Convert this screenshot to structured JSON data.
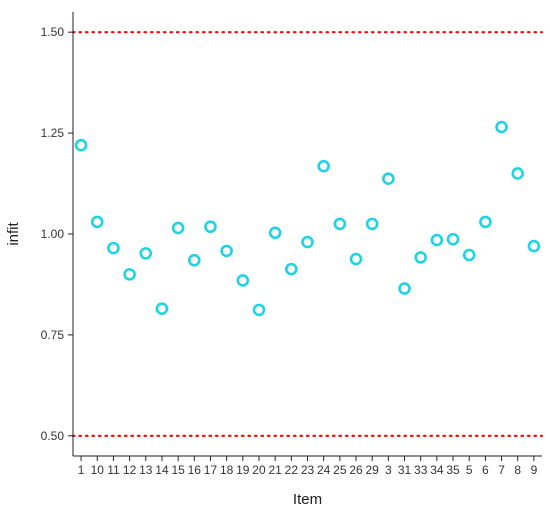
{
  "chart_data": {
    "type": "scatter",
    "title": "",
    "xlabel": "Item",
    "ylabel": "infit",
    "ylim": [
      0.45,
      1.55
    ],
    "y_ticks": [
      "0.50",
      "0.75",
      "1.00",
      "1.25",
      "1.50"
    ],
    "reference_lines": [
      0.5,
      1.5
    ],
    "reference_line_color": "#ff0000",
    "point_color": "#1fd3e6",
    "grid": false,
    "categories": [
      "1",
      "10",
      "11",
      "12",
      "13",
      "14",
      "15",
      "16",
      "17",
      "18",
      "19",
      "20",
      "21",
      "22",
      "23",
      "24",
      "25",
      "26",
      "29",
      "3",
      "31",
      "33",
      "34",
      "35",
      "5",
      "6",
      "7",
      "8",
      "9"
    ],
    "values": [
      1.22,
      1.03,
      0.965,
      0.9,
      0.952,
      0.815,
      1.015,
      0.935,
      1.018,
      0.958,
      0.885,
      0.812,
      1.003,
      0.913,
      0.98,
      1.168,
      1.025,
      0.938,
      1.025,
      1.137,
      0.865,
      0.942,
      0.985,
      0.987,
      0.948,
      1.03,
      1.265,
      1.15,
      0.97
    ]
  }
}
